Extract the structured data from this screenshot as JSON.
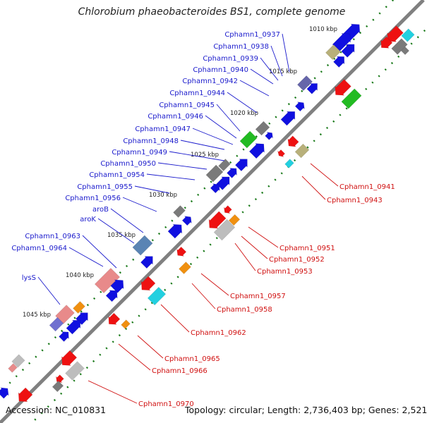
{
  "title": "Chlorobium phaeobacteroides BS1, complete genome",
  "footer": {
    "accession": "Accession: NC_010831",
    "topology": "Topology: circular; Length: 2,736,403 bp; Genes: 2,521"
  },
  "colors": {
    "blue_label": "#1a1acc",
    "red_label": "#d01010",
    "backbone": "#808080",
    "tick": "#1a7a1a",
    "blue": "#1010e0",
    "red": "#ee1111",
    "grey": "#7a7a7a",
    "silver": "#bdbdbd",
    "khaki": "#b8b07a",
    "green": "#22bb22",
    "cyan": "#22d0e0",
    "orange": "#f09010",
    "purple": "#6666aa",
    "steel": "#5a84b4",
    "pink": "#e88a8a",
    "lavender": "#7070d0"
  },
  "kbp_labels": [
    "1010 kbp",
    "1015 kbp",
    "1020 kbp",
    "1025 kbp",
    "1030 kbp",
    "1035 kbp",
    "1040 kbp",
    "1045 kbp"
  ],
  "blue_gene_labels": [
    "Cphamn1_0937",
    "Cphamn1_0938",
    "Cphamn1_0939",
    "Cphamn1_0940",
    "Cphamn1_0942",
    "Cphamn1_0944",
    "Cphamn1_0945",
    "Cphamn1_0946",
    "Cphamn1_0947",
    "Cphamn1_0948",
    "Cphamn1_0949",
    "Cphamn1_0950",
    "Cphamn1_0954",
    "Cphamn1_0955",
    "Cphamn1_0956",
    "aroB",
    "aroK",
    "Cphamn1_0963",
    "Cphamn1_0964",
    "lysS"
  ],
  "red_gene_labels": [
    "Cphamn1_0941",
    "Cphamn1_0943",
    "Cphamn1_0951",
    "Cphamn1_0952",
    "Cphamn1_0953",
    "Cphamn1_0957",
    "Cphamn1_0958",
    "Cphamn1_0962",
    "Cphamn1_0965",
    "Cphamn1_0966",
    "Cphamn1_0970"
  ]
}
